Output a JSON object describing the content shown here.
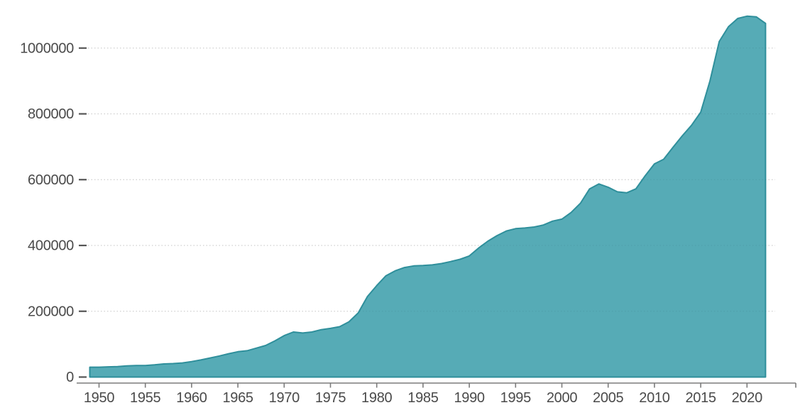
{
  "chart_data": {
    "type": "area",
    "title": "",
    "xlabel": "",
    "ylabel": "",
    "legend": "none",
    "grid": "horizontal-dotted",
    "xlim": [
      1948.5,
      2025.3
    ],
    "ylim": [
      0,
      1150000
    ],
    "x_ticks": [
      1950,
      1955,
      1960,
      1965,
      1970,
      1975,
      1980,
      1985,
      1990,
      1995,
      2000,
      2005,
      2010,
      2015,
      2020
    ],
    "y_ticks": [
      0,
      200000,
      400000,
      600000,
      800000,
      1000000
    ],
    "series": [
      {
        "name": "value",
        "x": [
          1949,
          1950,
          1951,
          1952,
          1953,
          1954,
          1955,
          1956,
          1957,
          1958,
          1959,
          1960,
          1961,
          1962,
          1963,
          1964,
          1965,
          1966,
          1967,
          1968,
          1969,
          1970,
          1971,
          1972,
          1973,
          1974,
          1975,
          1976,
          1977,
          1978,
          1979,
          1980,
          1981,
          1982,
          1983,
          1984,
          1985,
          1986,
          1987,
          1988,
          1989,
          1990,
          1991,
          1992,
          1993,
          1994,
          1995,
          1996,
          1997,
          1998,
          1999,
          2000,
          2001,
          2002,
          2003,
          2004,
          2005,
          2006,
          2007,
          2008,
          2009,
          2010,
          2011,
          2012,
          2013,
          2014,
          2015,
          2016,
          2017,
          2018,
          2019,
          2020,
          2021,
          2022
        ],
        "values": [
          30000,
          30000,
          31000,
          32000,
          34000,
          35000,
          35000,
          37000,
          40000,
          41000,
          43000,
          47000,
          52000,
          58000,
          64000,
          71000,
          77000,
          80000,
          88000,
          96000,
          110000,
          126000,
          137000,
          134000,
          137000,
          144000,
          148000,
          153000,
          168000,
          195000,
          245000,
          278000,
          308000,
          323000,
          333000,
          338000,
          339000,
          341000,
          345000,
          351000,
          358000,
          368000,
          392000,
          413000,
          430000,
          444000,
          451000,
          453000,
          456000,
          462000,
          474000,
          480000,
          500000,
          528000,
          572000,
          587000,
          577000,
          563000,
          560000,
          572000,
          612000,
          648000,
          662000,
          698000,
          733000,
          765000,
          805000,
          900000,
          1020000,
          1065000,
          1090000,
          1097000,
          1095000,
          1075000
        ]
      }
    ],
    "colors": {
      "area_fill": "#56abb6",
      "area_stroke": "#2f8f9b",
      "grid": "#dcdcdc",
      "grid_overlay": "rgba(0,0,0,0.07)",
      "axis": "#7b7b7b",
      "tick": "#555555",
      "tick_label": "#4a4a4a",
      "background": "#ffffff"
    }
  }
}
